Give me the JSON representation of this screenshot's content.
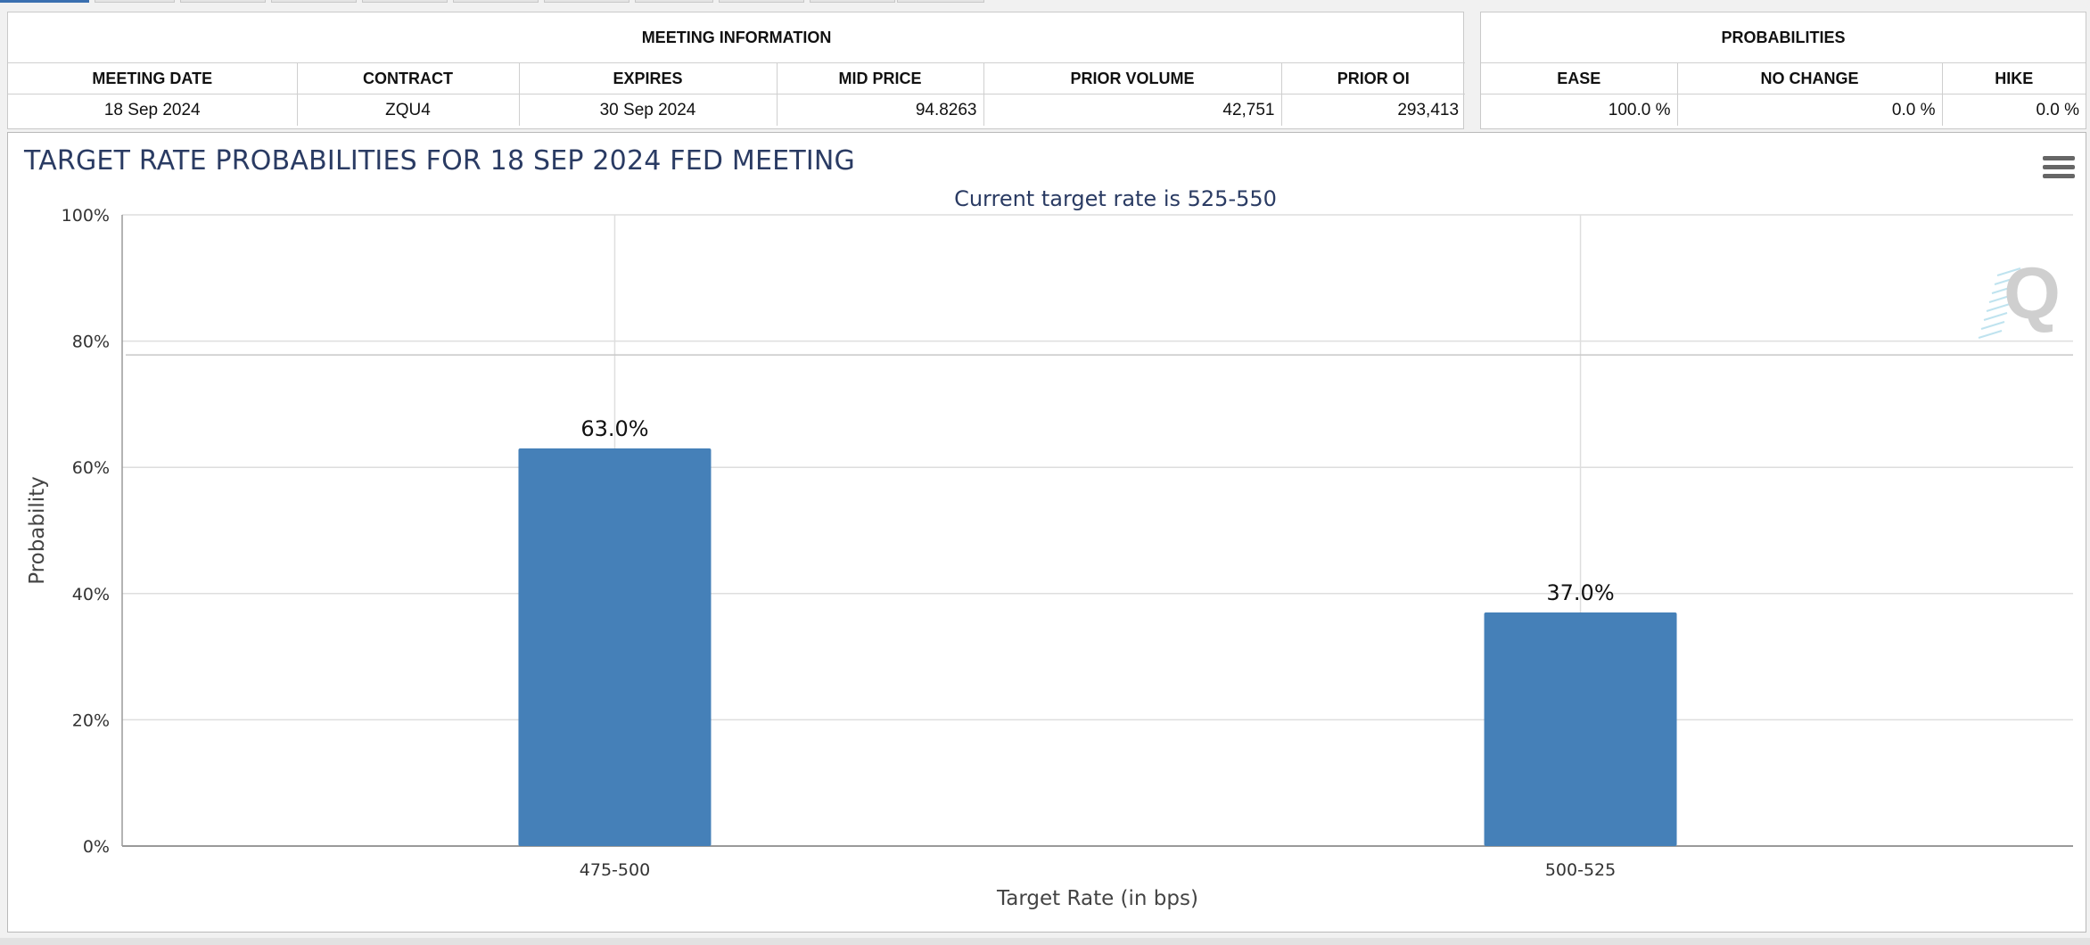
{
  "meeting_info": {
    "title": "MEETING INFORMATION",
    "columns": [
      "MEETING DATE",
      "CONTRACT",
      "EXPIRES",
      "MID PRICE",
      "PRIOR VOLUME",
      "PRIOR OI"
    ],
    "row": [
      "18 Sep 2024",
      "ZQU4",
      "30 Sep 2024",
      "94.8263",
      "42,751",
      "293,413"
    ]
  },
  "probabilities": {
    "title": "PROBABILITIES",
    "columns": [
      "EASE",
      "NO CHANGE",
      "HIKE"
    ],
    "row": [
      "100.0 %",
      "0.0 %",
      "0.0 %"
    ]
  },
  "chart": {
    "heading": "TARGET RATE PROBABILITIES FOR 18 SEP 2024 FED MEETING",
    "menu_icon": "hamburger-icon",
    "watermark_icon": "q-logo-icon"
  },
  "chart_data": {
    "type": "bar",
    "title": "TARGET RATE PROBABILITIES FOR 18 SEP 2024 FED MEETING",
    "subtitle": "Current target rate is 525-550",
    "xlabel": "Target Rate (in bps)",
    "ylabel": "Probability",
    "categories": [
      "475-500",
      "500-525"
    ],
    "values": [
      63.0,
      37.0
    ],
    "data_labels": [
      "63.0%",
      "37.0%"
    ],
    "ylim": [
      0,
      100
    ],
    "yticks": [
      "0%",
      "20%",
      "40%",
      "60%",
      "80%",
      "100%"
    ],
    "grid": true,
    "legend": "none",
    "bar_color": "#4580b8"
  }
}
